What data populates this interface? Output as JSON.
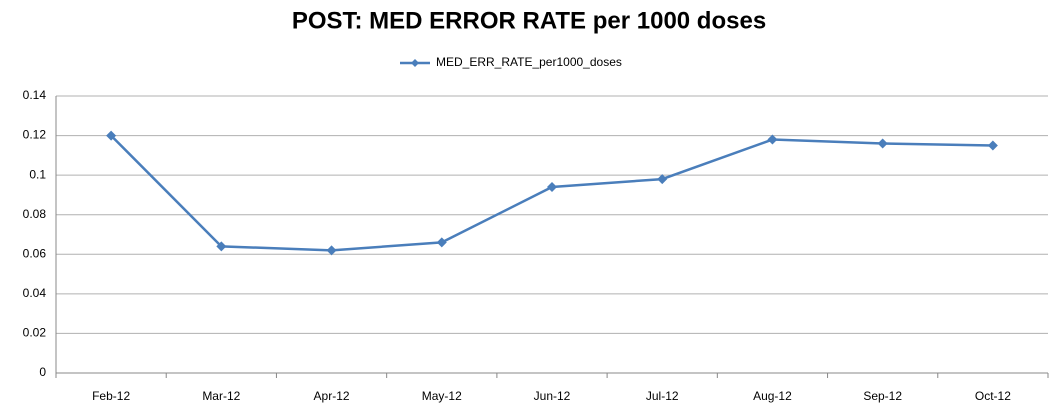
{
  "chart_data": {
    "type": "line",
    "title": "POST:  MED ERROR RATE per 1000 doses",
    "categories": [
      "Feb-12",
      "Mar-12",
      "Apr-12",
      "May-12",
      "Jun-12",
      "Jul-12",
      "Aug-12",
      "Sep-12",
      "Oct-12"
    ],
    "series": [
      {
        "name": "MED_ERR_RATE_per1000_doses",
        "color": "#4a7ebb",
        "values": [
          0.12,
          0.064,
          0.062,
          0.066,
          0.094,
          0.098,
          0.118,
          0.116,
          0.115
        ]
      }
    ],
    "ylim": [
      0,
      0.14
    ],
    "yticks": [
      0,
      0.02,
      0.04,
      0.06,
      0.08,
      0.1,
      0.12,
      0.14
    ],
    "grid": true,
    "legend": "top"
  }
}
